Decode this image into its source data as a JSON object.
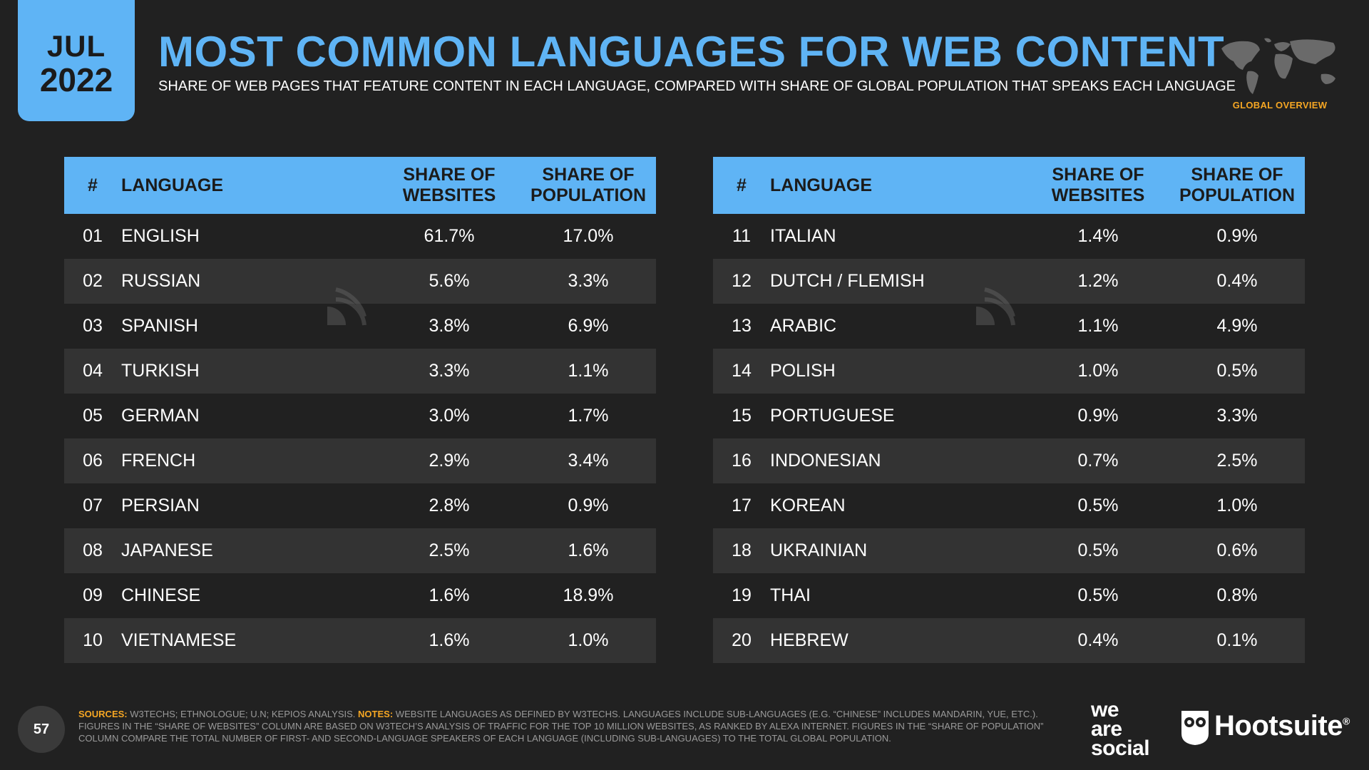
{
  "badge": {
    "month": "JUL",
    "year": "2022"
  },
  "title": "MOST COMMON LANGUAGES FOR WEB CONTENT",
  "subtitle": "SHARE OF WEB PAGES THAT FEATURE CONTENT IN EACH LANGUAGE, COMPARED WITH SHARE OF GLOBAL POPULATION THAT SPEAKS EACH LANGUAGE",
  "section_label": "GLOBAL OVERVIEW",
  "table_headers": {
    "num": "#",
    "language": "LANGUAGE",
    "web_line1": "SHARE OF",
    "web_line2": "WEBSITES",
    "pop_line1": "SHARE OF",
    "pop_line2": "POPULATION"
  },
  "left_rows": [
    {
      "num": "01",
      "language": "ENGLISH",
      "websites": "61.7%",
      "population": "17.0%"
    },
    {
      "num": "02",
      "language": "RUSSIAN",
      "websites": "5.6%",
      "population": "3.3%"
    },
    {
      "num": "03",
      "language": "SPANISH",
      "websites": "3.8%",
      "population": "6.9%"
    },
    {
      "num": "04",
      "language": "TURKISH",
      "websites": "3.3%",
      "population": "1.1%"
    },
    {
      "num": "05",
      "language": "GERMAN",
      "websites": "3.0%",
      "population": "1.7%"
    },
    {
      "num": "06",
      "language": "FRENCH",
      "websites": "2.9%",
      "population": "3.4%"
    },
    {
      "num": "07",
      "language": "PERSIAN",
      "websites": "2.8%",
      "population": "0.9%"
    },
    {
      "num": "08",
      "language": "JAPANESE",
      "websites": "2.5%",
      "population": "1.6%"
    },
    {
      "num": "09",
      "language": "CHINESE",
      "websites": "1.6%",
      "population": "18.9%"
    },
    {
      "num": "10",
      "language": "VIETNAMESE",
      "websites": "1.6%",
      "population": "1.0%"
    }
  ],
  "right_rows": [
    {
      "num": "11",
      "language": "ITALIAN",
      "websites": "1.4%",
      "population": "0.9%"
    },
    {
      "num": "12",
      "language": "DUTCH / FLEMISH",
      "websites": "1.2%",
      "population": "0.4%"
    },
    {
      "num": "13",
      "language": "ARABIC",
      "websites": "1.1%",
      "population": "4.9%"
    },
    {
      "num": "14",
      "language": "POLISH",
      "websites": "1.0%",
      "population": "0.5%"
    },
    {
      "num": "15",
      "language": "PORTUGUESE",
      "websites": "0.9%",
      "population": "3.3%"
    },
    {
      "num": "16",
      "language": "INDONESIAN",
      "websites": "0.7%",
      "population": "2.5%"
    },
    {
      "num": "17",
      "language": "KOREAN",
      "websites": "0.5%",
      "population": "1.0%"
    },
    {
      "num": "18",
      "language": "UKRAINIAN",
      "websites": "0.5%",
      "population": "0.6%"
    },
    {
      "num": "19",
      "language": "THAI",
      "websites": "0.5%",
      "population": "0.8%"
    },
    {
      "num": "20",
      "language": "HEBREW",
      "websites": "0.4%",
      "population": "0.1%"
    }
  ],
  "footer": {
    "page_number": "57",
    "sources_label": "SOURCES:",
    "sources_text": "W3TECHS; ETHNOLOGUE; U.N; KEPIOS ANALYSIS.",
    "notes_label": "NOTES:",
    "notes_text": "WEBSITE LANGUAGES AS DEFINED BY W3TECHS. LANGUAGES INCLUDE SUB-LANGUAGES (E.G. “CHINESE” INCLUDES MANDARIN, YUE, ETC.). FIGURES IN THE “SHARE OF WEBSITES” COLUMN ARE BASED ON W3TECH’S ANALYSIS OF TRAFFIC FOR THE TOP 10 MILLION WEBSITES, AS RANKED BY ALEXA INTERNET. FIGURES IN THE “SHARE OF POPULATION” COLUMN COMPARE THE TOTAL NUMBER OF FIRST- AND SECOND-LANGUAGE SPEAKERS OF EACH LANGUAGE (INCLUDING SUB-LANGUAGES) TO THE TOTAL GLOBAL POPULATION.",
    "brand_we": "we",
    "brand_are": "are",
    "brand_social": "social",
    "brand_hootsuite": "Hootsuite",
    "brand_reg": "®"
  },
  "colors": {
    "background": "#212121",
    "accent_blue": "#5fb4f5",
    "accent_orange": "#f5a623",
    "row_alt": "#333333"
  },
  "icons": [
    "world-map-icon",
    "datareportal-watermark-icon",
    "hootsuite-owl-icon"
  ]
}
